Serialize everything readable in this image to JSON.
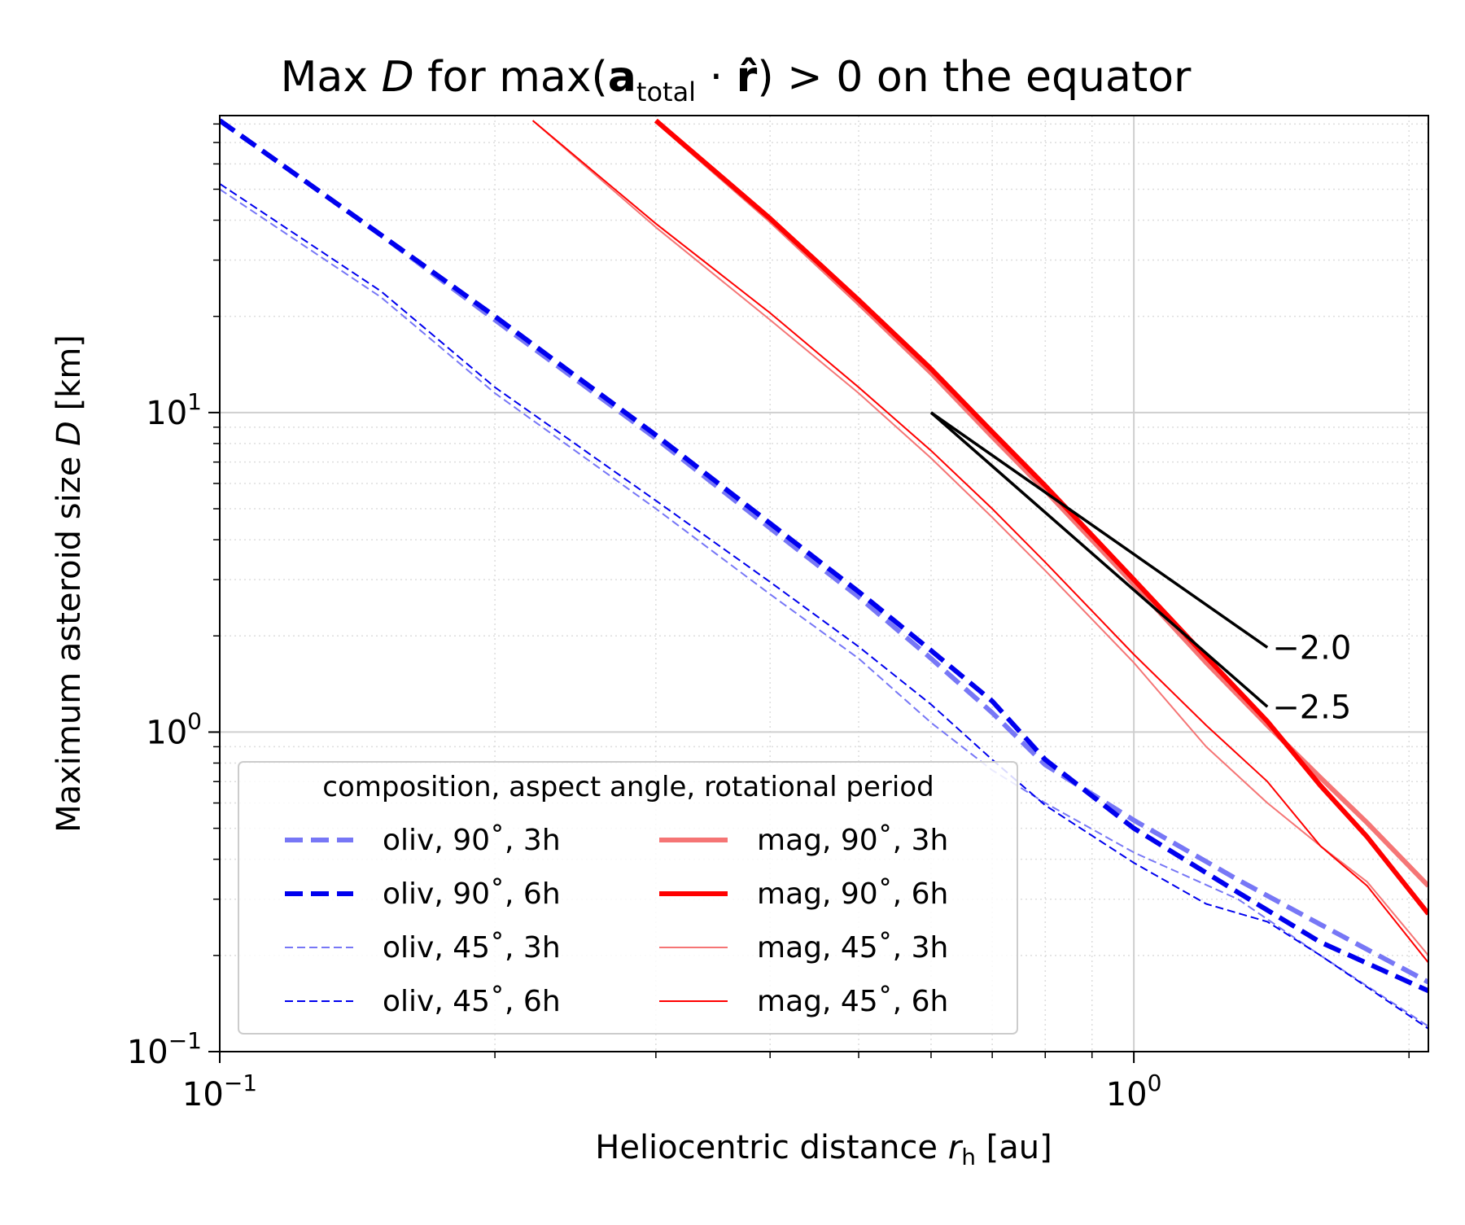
{
  "chart_data": {
    "type": "line",
    "title": {
      "pre": "Max ",
      "D": "D",
      "mid": " for max(",
      "a": "a",
      "a_sub": "total",
      "dot": " · ",
      "r": "r̂",
      "post": ") > 0 on the equator"
    },
    "xlabel": {
      "text": "Heliocentric distance ",
      "var": "r",
      "sub": "h",
      "unit": " [au]"
    },
    "ylabel": {
      "text": "Maximum asteroid size ",
      "var": "D",
      "unit": " [km]"
    },
    "x_scale": "log",
    "y_scale": "log",
    "xlim": [
      0.1,
      2.1
    ],
    "ylim": [
      0.1,
      85
    ],
    "x_ticks": [
      {
        "value": 0.1,
        "base": "10",
        "exp": "−1"
      },
      {
        "value": 1,
        "base": "10",
        "exp": "0"
      }
    ],
    "y_ticks": [
      {
        "value": 0.1,
        "base": "10",
        "exp": "−1"
      },
      {
        "value": 1,
        "base": "10",
        "exp": "0"
      },
      {
        "value": 10,
        "base": "10",
        "exp": "1"
      }
    ],
    "grid": true,
    "legend": {
      "title": "composition, aspect angle, rotational period",
      "location": "lower left",
      "columns": 2
    },
    "series": [
      {
        "name": "oliv, 90˚, 3h",
        "color": "#7777f6",
        "style": "dashed",
        "weight": "thick",
        "points": [
          [
            0.1,
            82
          ],
          [
            0.15,
            36
          ],
          [
            0.2,
            19.5
          ],
          [
            0.3,
            8.3
          ],
          [
            0.4,
            4.35
          ],
          [
            0.5,
            2.65
          ],
          [
            0.6,
            1.7
          ],
          [
            0.7,
            1.15
          ],
          [
            0.8,
            0.79
          ],
          [
            1.0,
            0.53
          ],
          [
            1.3,
            0.345
          ],
          [
            1.6,
            0.25
          ],
          [
            2.1,
            0.165
          ]
        ]
      },
      {
        "name": "oliv, 90˚, 6h",
        "color": "#0000ee",
        "style": "dashed",
        "weight": "thick",
        "points": [
          [
            0.1,
            82
          ],
          [
            0.15,
            36
          ],
          [
            0.2,
            20
          ],
          [
            0.3,
            8.5
          ],
          [
            0.4,
            4.5
          ],
          [
            0.5,
            2.75
          ],
          [
            0.6,
            1.8
          ],
          [
            0.7,
            1.25
          ],
          [
            0.8,
            0.82
          ],
          [
            1.0,
            0.5
          ],
          [
            1.3,
            0.315
          ],
          [
            1.6,
            0.22
          ],
          [
            2.1,
            0.155
          ]
        ]
      },
      {
        "name": "oliv, 45˚, 3h",
        "color": "#7777f6",
        "style": "dashed",
        "weight": "thin",
        "points": [
          [
            0.1,
            50
          ],
          [
            0.15,
            23
          ],
          [
            0.2,
            11.5
          ],
          [
            0.3,
            5.0
          ],
          [
            0.4,
            2.7
          ],
          [
            0.5,
            1.7
          ],
          [
            0.6,
            1.07
          ],
          [
            0.7,
            0.76
          ],
          [
            0.8,
            0.6
          ],
          [
            1.0,
            0.42
          ],
          [
            1.3,
            0.3
          ],
          [
            1.6,
            0.2
          ],
          [
            2.1,
            0.12
          ]
        ]
      },
      {
        "name": "oliv, 45˚, 6h",
        "color": "#0000ee",
        "style": "dashed",
        "weight": "thin",
        "points": [
          [
            0.1,
            52
          ],
          [
            0.15,
            24
          ],
          [
            0.2,
            12
          ],
          [
            0.3,
            5.3
          ],
          [
            0.4,
            2.95
          ],
          [
            0.5,
            1.85
          ],
          [
            0.6,
            1.22
          ],
          [
            0.7,
            0.82
          ],
          [
            0.8,
            0.59
          ],
          [
            1.0,
            0.39
          ],
          [
            1.2,
            0.29
          ],
          [
            1.4,
            0.255
          ],
          [
            1.6,
            0.2
          ],
          [
            2.1,
            0.118
          ]
        ]
      },
      {
        "name": "mag, 90˚, 3h",
        "color": "#f57575",
        "style": "solid",
        "weight": "thick",
        "points": [
          [
            0.3,
            82
          ],
          [
            0.4,
            40
          ],
          [
            0.5,
            22
          ],
          [
            0.6,
            13.3
          ],
          [
            0.7,
            8.4
          ],
          [
            0.8,
            5.7
          ],
          [
            1.0,
            2.9
          ],
          [
            1.2,
            1.65
          ],
          [
            1.4,
            1.05
          ],
          [
            1.6,
            0.72
          ],
          [
            1.8,
            0.52
          ],
          [
            2.1,
            0.33
          ]
        ]
      },
      {
        "name": "mag, 90˚, 6h",
        "color": "#ff0000",
        "style": "solid",
        "weight": "thick",
        "points": [
          [
            0.3,
            82
          ],
          [
            0.4,
            40.5
          ],
          [
            0.5,
            22.5
          ],
          [
            0.6,
            13.7
          ],
          [
            0.7,
            8.7
          ],
          [
            0.8,
            5.9
          ],
          [
            1.0,
            3.0
          ],
          [
            1.2,
            1.72
          ],
          [
            1.4,
            1.08
          ],
          [
            1.6,
            0.68
          ],
          [
            1.8,
            0.47
          ],
          [
            2.1,
            0.27
          ]
        ]
      },
      {
        "name": "mag, 45˚, 3h",
        "color": "#f57575",
        "style": "solid",
        "weight": "thin",
        "points": [
          [
            0.22,
            82
          ],
          [
            0.3,
            38
          ],
          [
            0.4,
            19.5
          ],
          [
            0.5,
            11.5
          ],
          [
            0.6,
            7.2
          ],
          [
            0.7,
            4.7
          ],
          [
            0.8,
            3.2
          ],
          [
            1.0,
            1.65
          ],
          [
            1.2,
            0.9
          ],
          [
            1.4,
            0.6
          ],
          [
            1.6,
            0.44
          ],
          [
            1.8,
            0.34
          ],
          [
            2.1,
            0.2
          ]
        ]
      },
      {
        "name": "mag, 45˚, 6h",
        "color": "#ff0000",
        "style": "solid",
        "weight": "thin",
        "points": [
          [
            0.22,
            82
          ],
          [
            0.3,
            39
          ],
          [
            0.4,
            20.5
          ],
          [
            0.5,
            12
          ],
          [
            0.6,
            7.6
          ],
          [
            0.7,
            5.0
          ],
          [
            0.8,
            3.4
          ],
          [
            1.0,
            1.75
          ],
          [
            1.2,
            1.05
          ],
          [
            1.4,
            0.7
          ],
          [
            1.6,
            0.44
          ],
          [
            1.8,
            0.33
          ],
          [
            2.1,
            0.19
          ]
        ]
      }
    ],
    "reference_lines": [
      {
        "label": "−2.0",
        "slope": -2.0,
        "x": [
          0.6,
          1.4
        ],
        "y": [
          10.0,
          1.84
        ]
      },
      {
        "label": "−2.5",
        "slope": -2.5,
        "x": [
          0.6,
          1.4
        ],
        "y": [
          10.0,
          1.2
        ]
      }
    ]
  }
}
